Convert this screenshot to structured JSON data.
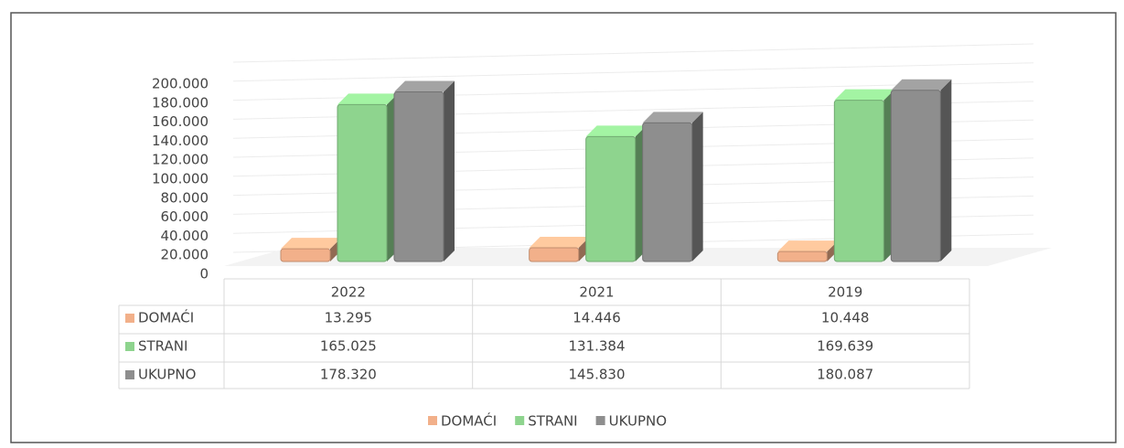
{
  "chart_data": {
    "type": "bar3d",
    "categories": [
      "2022",
      "2021",
      "2019"
    ],
    "series": [
      {
        "name": "DOMAĆI",
        "color": "#f2b08a",
        "values": [
          13295,
          14446,
          10448
        ],
        "value_labels": [
          "13.295",
          "14.446",
          "10.448"
        ]
      },
      {
        "name": "STRANI",
        "color": "#8ed48e",
        "values": [
          165025,
          131384,
          169639
        ],
        "value_labels": [
          "165.025",
          "131.384",
          "169.639"
        ]
      },
      {
        "name": "UKUPNO",
        "color": "#8e8e8e",
        "values": [
          178320,
          145830,
          180087
        ],
        "value_labels": [
          "178.320",
          "145.830",
          "180.087"
        ]
      }
    ],
    "ylim": [
      0,
      200000
    ],
    "yticks": [
      0,
      {
        "value": 20000,
        "label": "20.000"
      },
      {
        "value": 40000,
        "label": "40.000"
      },
      {
        "value": 60000,
        "label": "60.000"
      },
      {
        "value": 80000,
        "label": "80.000"
      },
      {
        "value": 100000,
        "label": "100.000"
      },
      {
        "value": 120000,
        "label": "120.000"
      },
      {
        "value": 140000,
        "label": "140.000"
      },
      {
        "value": 160000,
        "label": "160.000"
      },
      {
        "value": 180000,
        "label": "180.000"
      },
      {
        "value": 200000,
        "label": "200.000"
      }
    ],
    "grid": true
  }
}
